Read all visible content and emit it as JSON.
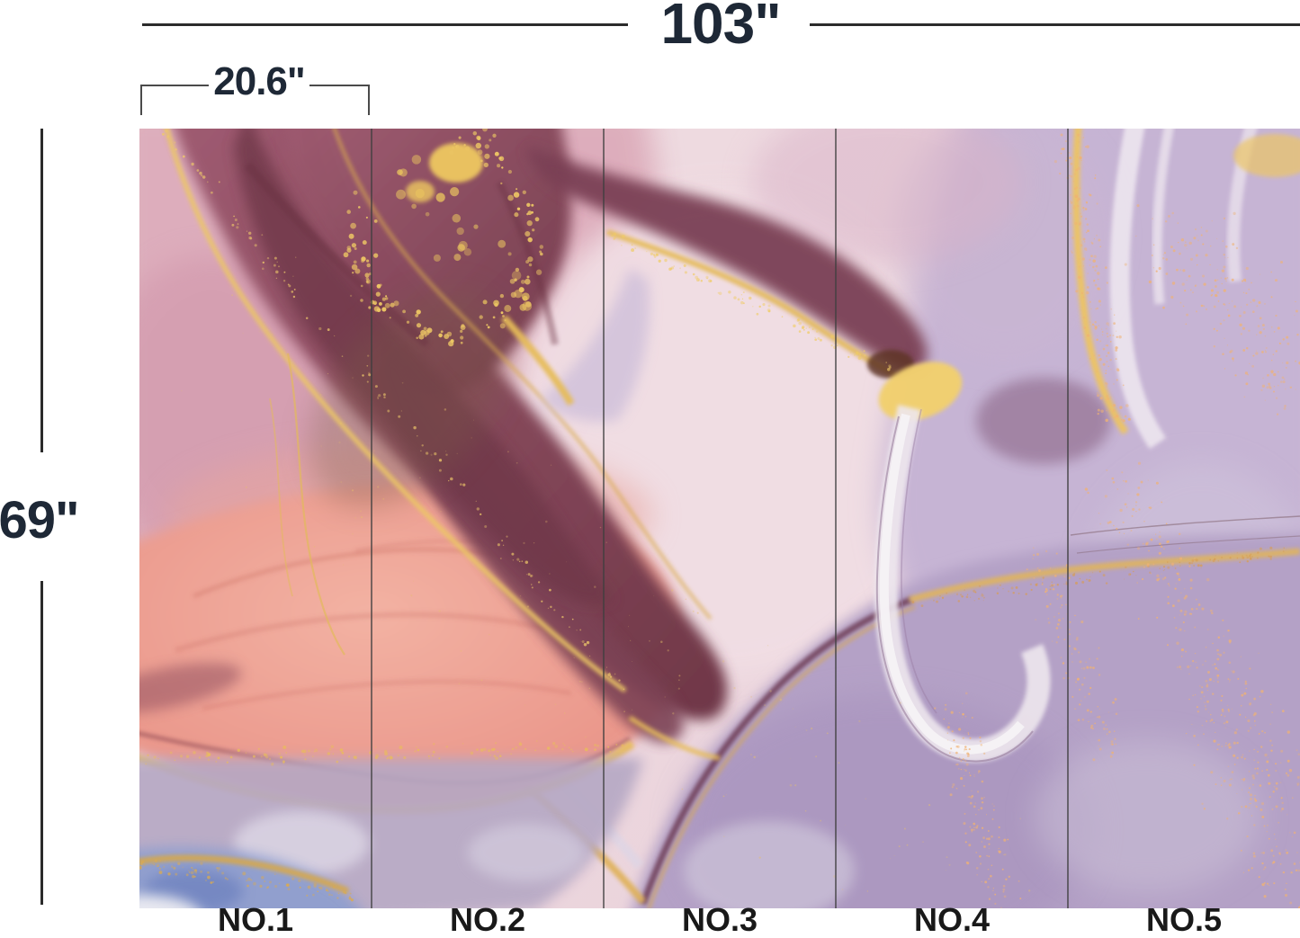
{
  "annotations": {
    "total_width": "103\"",
    "panel_width": "20.6\"",
    "height": "69\""
  },
  "panels": [
    {
      "label": "NO.1"
    },
    {
      "label": "NO.2"
    },
    {
      "label": "NO.3"
    },
    {
      "label": "NO.4"
    },
    {
      "label": "NO.5"
    }
  ],
  "palette": {
    "dimension_text": "#1e2836",
    "label_text": "#191919",
    "line": "#2b2b2b",
    "divider": "#3f3f3f",
    "base_pink": "#eed9de",
    "rose": "#d9a6b6",
    "dark_mauve": "#7c4254",
    "salmon": "#ea978c",
    "pale_center": "#f1dee4",
    "lavender": "#c6b4d4",
    "deep_lavender": "#b4a1c6",
    "gold": "#ecc564",
    "dust": "#f0b273",
    "blue_corner": "#8d9ecf",
    "white_band": "#f0e9f1"
  }
}
